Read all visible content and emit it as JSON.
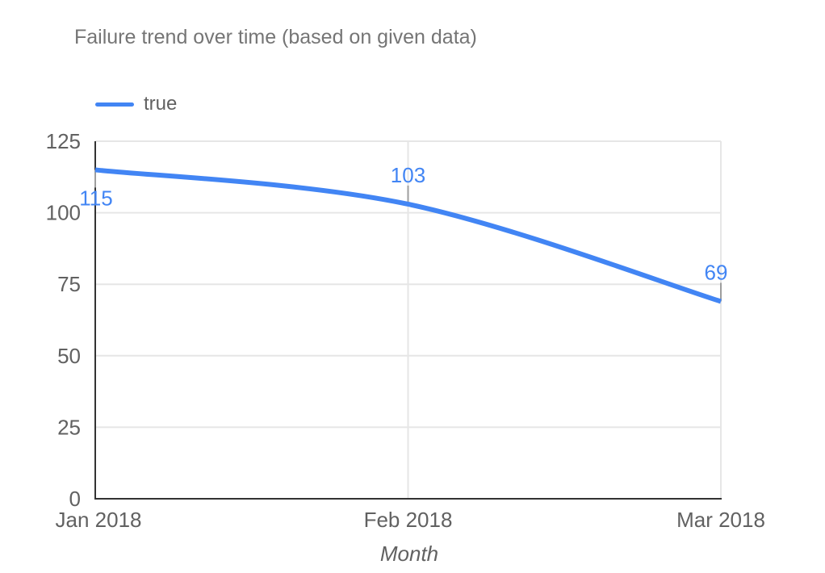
{
  "chart_data": {
    "type": "line",
    "title": "Failure trend over time (based on given data)",
    "x": [
      "Jan 2018",
      "Feb 2018",
      "Mar 2018"
    ],
    "series": [
      {
        "name": "true",
        "color": "#4285f4",
        "values": [
          115,
          103,
          69
        ]
      }
    ],
    "annotations": {
      "labels": [
        "115",
        "103",
        "69"
      ],
      "placements": [
        "below",
        "above",
        "above"
      ]
    },
    "xlabel": "Month",
    "ylabel": "",
    "ylim": [
      0,
      125
    ],
    "yticks": [
      0,
      25,
      50,
      75,
      100,
      125
    ],
    "grid": true,
    "legend_position": "top-left",
    "curve": "smooth"
  },
  "colors": {
    "background": "#ffffff",
    "line": "#4285f4",
    "annotation_text": "#4285f4",
    "title_text": "#757575",
    "axis_text": "#616161",
    "legend_text": "#616161",
    "axis_line": "#333333",
    "gridline": "#e6e6e6",
    "stem": "#9e9e9e"
  }
}
